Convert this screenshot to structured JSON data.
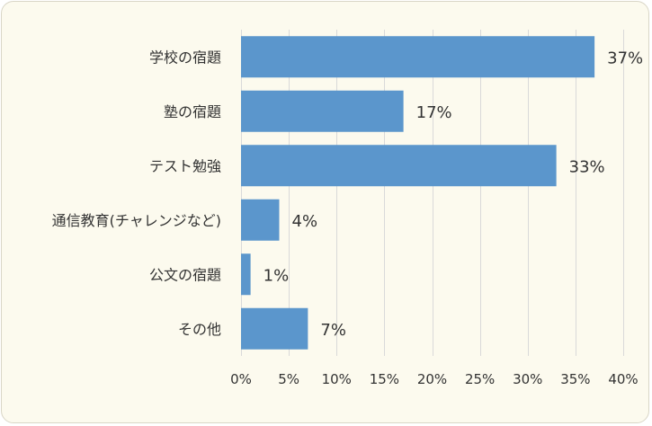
{
  "colors": {
    "background": "#fcfaee",
    "bar": "#5b96cc",
    "grid": "#d9d9d9",
    "text": "#333333"
  },
  "chart_data": {
    "type": "bar",
    "orientation": "horizontal",
    "categories": [
      "学校の宿題",
      "塾の宿題",
      "テスト勉強",
      "通信教育(チャレンジなど)",
      "公文の宿題",
      "その他"
    ],
    "values": [
      37,
      17,
      33,
      4,
      1,
      7
    ],
    "data_labels": [
      "37%",
      "17%",
      "33%",
      "4%",
      "1%",
      "7%"
    ],
    "xlim": [
      0,
      40
    ],
    "x_ticks": [
      0,
      5,
      10,
      15,
      20,
      25,
      30,
      35,
      40
    ],
    "x_tick_labels": [
      "0%",
      "5%",
      "10%",
      "15%",
      "20%",
      "25%",
      "30%",
      "35%",
      "40%"
    ],
    "grid": "vertical",
    "legend": "none"
  }
}
